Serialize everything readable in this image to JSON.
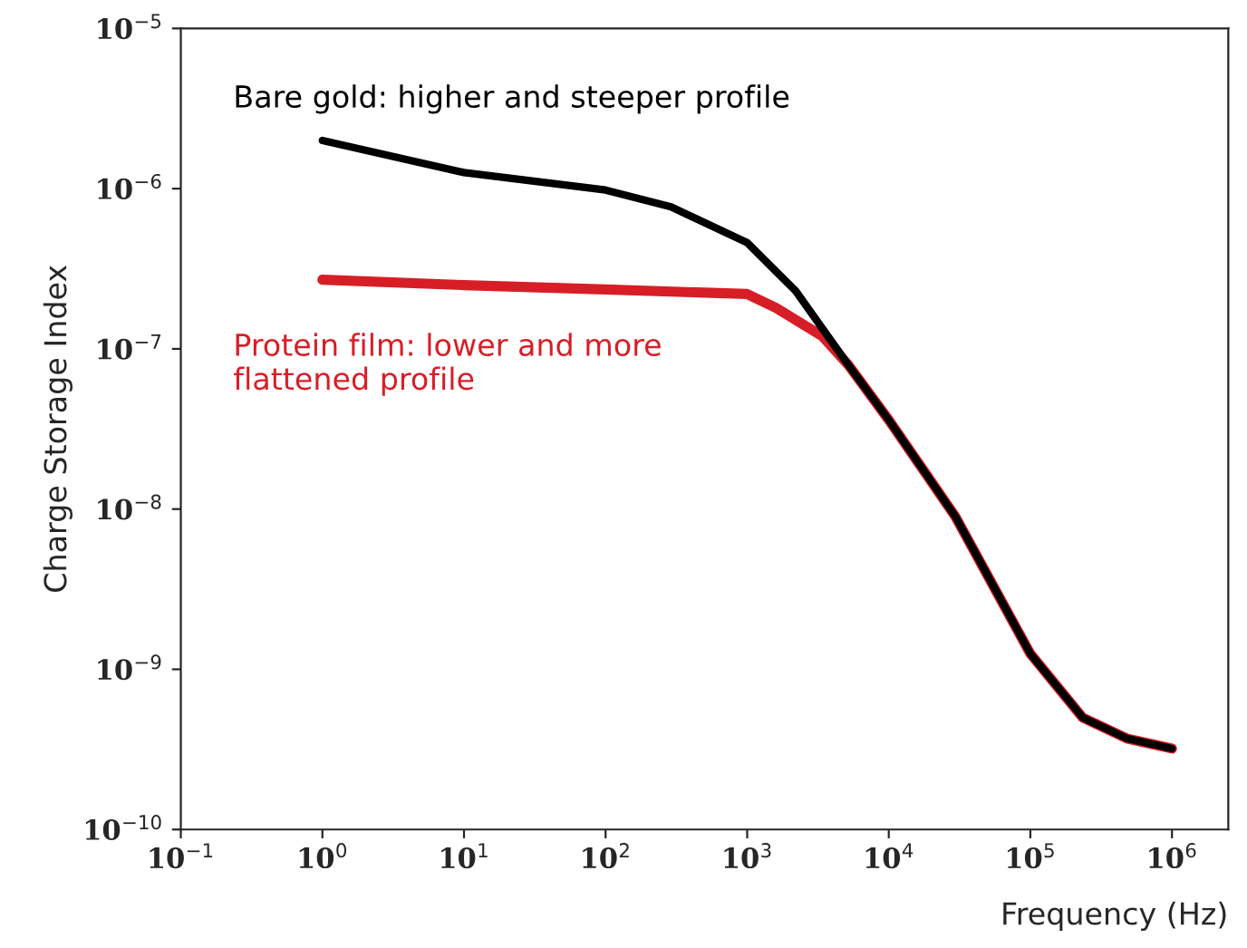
{
  "chart_data": {
    "type": "line",
    "xlabel": "Frequency (Hz)",
    "ylabel": "Charge Storage Index",
    "log": "xy",
    "annotations": [
      "Bare gold: higher and steeper profile",
      "Protein film: lower and more\nflattened profile"
    ],
    "series": [
      {
        "color": "#d71e26",
        "x": [
          1,
          10,
          100,
          1000,
          1600,
          3400,
          5200,
          10000,
          29500,
          100000,
          234000,
          480000,
          1000000
        ],
        "values": [
          2.7e-07,
          2.5e-07,
          2.35e-07,
          2.2e-07,
          1.8e-07,
          1.2e-07,
          7.9e-08,
          3.6e-08,
          9e-09,
          1.25e-09,
          5e-10,
          3.7e-10,
          3.2e-10
        ]
      },
      {
        "color": "#000000",
        "x": [
          1,
          10,
          100,
          290,
          1000,
          2200,
          5200,
          10000,
          29500,
          100000,
          234000,
          480000,
          1000000
        ],
        "values": [
          2e-06,
          1.26e-06,
          9.8e-07,
          7.7e-07,
          4.6e-07,
          2.3e-07,
          7.9e-08,
          3.6e-08,
          9e-09,
          1.25e-09,
          5e-10,
          3.7e-10,
          3.2e-10
        ]
      }
    ],
    "xlim": [
      0.1,
      2500000
    ],
    "ylim": [
      1e-10,
      1e-05
    ],
    "xticks": [
      {
        "value": 0.1,
        "label": "10$^{−1}$"
      },
      {
        "value": 1,
        "label": "10$^{0}$"
      },
      {
        "value": 10,
        "label": "10$^{1}$"
      },
      {
        "value": 100,
        "label": "10$^{2}$"
      },
      {
        "value": 1000,
        "label": "10$^{3}$"
      },
      {
        "value": 10000,
        "label": "10$^{4}$"
      },
      {
        "value": 100000,
        "label": "10$^{5}$"
      },
      {
        "value": 1000000,
        "label": "10$^{6}$"
      }
    ],
    "yticks": [
      {
        "value": 1e-10,
        "label": "10$^{−10}$"
      },
      {
        "value": 1e-09,
        "label": "10$^{−9}$"
      },
      {
        "value": 1e-08,
        "label": "10$^{−8}$"
      },
      {
        "value": 1e-07,
        "label": "10$^{−7}$"
      },
      {
        "value": 1e-06,
        "label": "10$^{−6}$"
      },
      {
        "value": 1e-05,
        "label": "10$^{−5}$"
      }
    ],
    "grid": false,
    "legend": false
  }
}
